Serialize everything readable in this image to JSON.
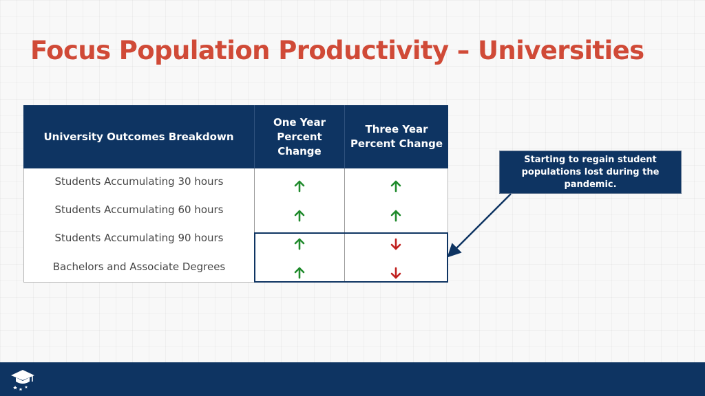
{
  "slide": {
    "title": "Focus Population Productivity – Universities"
  },
  "table": {
    "headers": {
      "col1": "University Outcomes Breakdown",
      "col2": "One Year Percent Change",
      "col3": "Three Year Percent Change"
    },
    "rows": [
      {
        "label": "Students Accumulating 30 hours",
        "one_year": "up",
        "three_year": "up"
      },
      {
        "label": "Students Accumulating 60 hours",
        "one_year": "up",
        "three_year": "up"
      },
      {
        "label": "Students Accumulating 90 hours",
        "one_year": "up",
        "three_year": "down"
      },
      {
        "label": "Bachelors and Associate Degrees",
        "one_year": "up",
        "three_year": "down"
      }
    ]
  },
  "callout": {
    "text": "Starting to regain student populations lost during the pandemic."
  },
  "colors": {
    "title": "#d04a37",
    "navy": "#0e3462",
    "up_arrow": "#1f8a2b",
    "down_arrow": "#c0201e"
  },
  "icons": {
    "up": "arrow-up-icon",
    "down": "arrow-down-icon",
    "logo": "graduation-cap-logo-icon"
  }
}
